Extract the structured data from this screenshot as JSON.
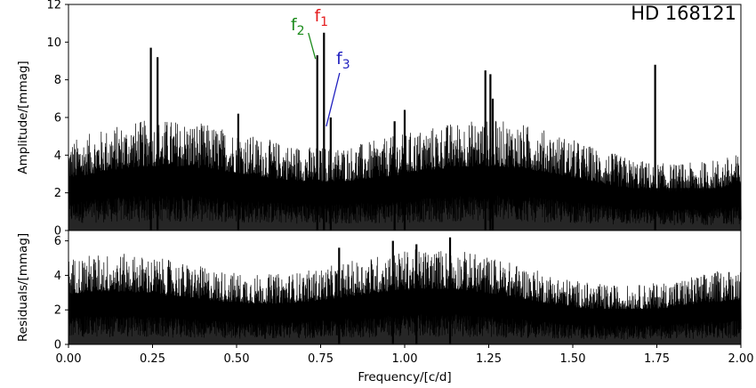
{
  "chart_data": [
    {
      "type": "line",
      "title": "HD 168121",
      "xlabel": "Frequency/[c/d]",
      "ylabel": "Amplitude/[mmag]",
      "xlim": [
        0.0,
        2.0
      ],
      "ylim": [
        0,
        12
      ],
      "xticks": [
        "0.00",
        "0.25",
        "0.50",
        "0.75",
        "1.00",
        "1.25",
        "1.50",
        "1.75",
        "2.00"
      ],
      "yticks": [
        "0",
        "2",
        "4",
        "6",
        "8",
        "10",
        "12"
      ],
      "noise_floor_mmag": 2.5,
      "peaks": [
        {
          "x": 0.245,
          "y": 9.7
        },
        {
          "x": 0.265,
          "y": 9.2
        },
        {
          "x": 0.74,
          "y": 9.3
        },
        {
          "x": 0.76,
          "y": 10.5
        },
        {
          "x": 0.78,
          "y": 6.0
        },
        {
          "x": 1.24,
          "y": 8.5
        },
        {
          "x": 1.255,
          "y": 8.3
        },
        {
          "x": 1.745,
          "y": 8.8
        },
        {
          "x": 1.262,
          "y": 7.0
        },
        {
          "x": 0.505,
          "y": 6.2
        },
        {
          "x": 1.0,
          "y": 6.4
        },
        {
          "x": 0.97,
          "y": 5.8
        }
      ],
      "annotations": [
        {
          "label": "f",
          "sub": "1",
          "color": "#e41a1c",
          "x": 0.76,
          "y": 10.5
        },
        {
          "label": "f",
          "sub": "2",
          "color": "#1a8a1a",
          "x": 0.74,
          "y": 9.3
        },
        {
          "label": "f",
          "sub": "3",
          "color": "#1f1fbf",
          "x": 0.78,
          "y": 6.0
        }
      ]
    },
    {
      "type": "line",
      "xlabel": "Frequency/[c/d]",
      "ylabel": "Residuals/[mmag]",
      "xlim": [
        0.0,
        2.0
      ],
      "ylim": [
        0,
        6.6
      ],
      "xticks": [
        "0.00",
        "0.25",
        "0.50",
        "0.75",
        "1.00",
        "1.25",
        "1.50",
        "1.75",
        "2.00"
      ],
      "yticks": [
        "0",
        "2",
        "4",
        "6"
      ],
      "noise_floor_mmag": 2.3,
      "peaks": [
        {
          "x": 1.135,
          "y": 6.2
        },
        {
          "x": 0.965,
          "y": 6.0
        },
        {
          "x": 1.035,
          "y": 5.8
        },
        {
          "x": 0.805,
          "y": 5.6
        }
      ]
    }
  ]
}
